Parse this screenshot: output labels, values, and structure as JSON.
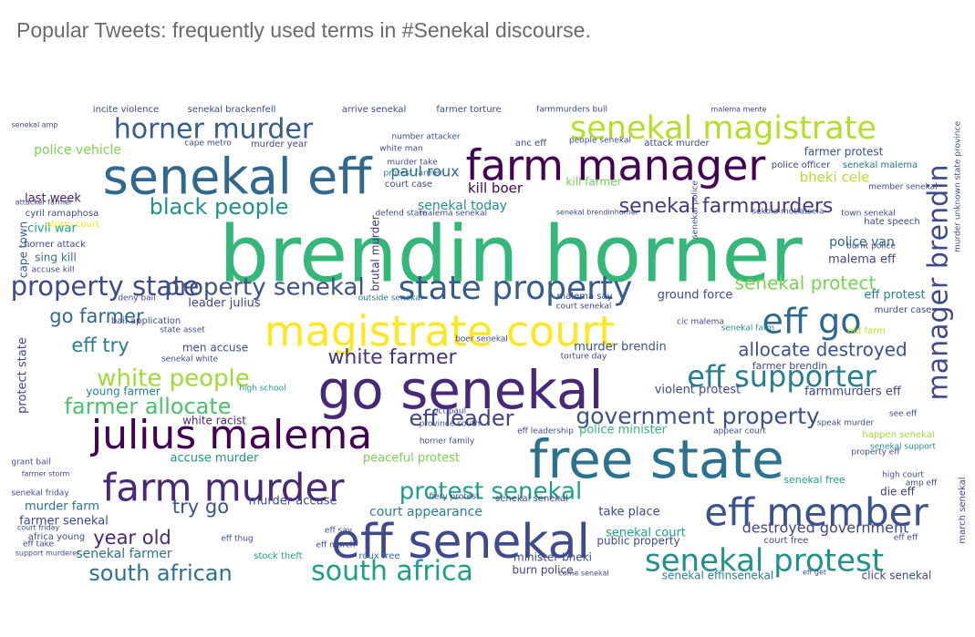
{
  "title": "Popular Tweets: frequently used terms in #Senekal discourse.",
  "chart_data": {
    "type": "wordcloud",
    "colormap": "viridis",
    "words": [
      {
        "text": "brendin horner",
        "weight": 100,
        "color": "#35b779"
      },
      {
        "text": "free state",
        "weight": 62,
        "color": "#2c728e"
      },
      {
        "text": "go senekal",
        "weight": 62,
        "color": "#482878"
      },
      {
        "text": "senekal eff",
        "weight": 60,
        "color": "#31688e"
      },
      {
        "text": "eff senekal",
        "weight": 56,
        "color": "#3e4a89"
      },
      {
        "text": "magistrate court",
        "weight": 52,
        "color": "#fde725"
      },
      {
        "text": "farm manager",
        "weight": 48,
        "color": "#440154"
      },
      {
        "text": "julius malema",
        "weight": 47,
        "color": "#440154"
      },
      {
        "text": "eff member",
        "weight": 45,
        "color": "#3b528b"
      },
      {
        "text": "farm murder",
        "weight": 45,
        "color": "#482878"
      },
      {
        "text": "eff go",
        "weight": 42,
        "color": "#31688e"
      },
      {
        "text": "property state",
        "weight": 37,
        "color": "#3e4a89"
      },
      {
        "text": "senekal magistrate",
        "weight": 36,
        "color": "#b5de2b"
      },
      {
        "text": "senekal protest",
        "weight": 36,
        "color": "#21918c"
      },
      {
        "text": "manager brendin",
        "weight": 34,
        "color": "#3e4a89"
      },
      {
        "text": "eff supporter",
        "weight": 34,
        "color": "#277f8e"
      },
      {
        "text": "south africa",
        "weight": 33,
        "color": "#1f9e89"
      },
      {
        "text": "horner murder",
        "weight": 32,
        "color": "#365c8d"
      },
      {
        "text": "property senekal",
        "weight": 30,
        "color": "#3b528b"
      },
      {
        "text": "white people",
        "weight": 28,
        "color": "#a0da39"
      },
      {
        "text": "government property",
        "weight": 26,
        "color": "#3b528b"
      },
      {
        "text": "protest senekal",
        "weight": 26,
        "color": "#1f9e89"
      },
      {
        "text": "black people",
        "weight": 25,
        "color": "#21918c"
      },
      {
        "text": "south african",
        "weight": 24,
        "color": "#2c728e"
      },
      {
        "text": "farmer allocate",
        "weight": 23,
        "color": "#4ac16d"
      },
      {
        "text": "eff leader",
        "weight": 23,
        "color": "#414487"
      },
      {
        "text": "white farmer",
        "weight": 22,
        "color": "#46337e"
      },
      {
        "text": "senekal farmmurders",
        "weight": 21,
        "color": "#443983"
      },
      {
        "text": "go farmer",
        "weight": 21,
        "color": "#31688e"
      },
      {
        "text": "senekal protect",
        "weight": 20,
        "color": "#7ad151"
      },
      {
        "text": "allocate destroyed",
        "weight": 20,
        "color": "#3b528b"
      },
      {
        "text": "eff try",
        "weight": 20,
        "color": "#287c8e"
      },
      {
        "text": "try go",
        "weight": 20,
        "color": "#3b528b"
      },
      {
        "text": "year old",
        "weight": 20,
        "color": "#482878"
      },
      {
        "text": "bheki cele",
        "weight": 14,
        "color": "#b5de2b"
      },
      {
        "text": "kill boer",
        "weight": 14,
        "color": "#440154"
      },
      {
        "text": "senekal today",
        "weight": 14,
        "color": "#21918c"
      },
      {
        "text": "paul roux",
        "weight": 14,
        "color": "#31688e"
      },
      {
        "text": "police van",
        "weight": 13,
        "color": "#31688e"
      },
      {
        "text": "malema eff",
        "weight": 13,
        "color": "#3e4a89"
      },
      {
        "text": "farmer protest",
        "weight": 12,
        "color": "#3b528b"
      },
      {
        "text": "police vehicle",
        "weight": 12,
        "color": "#7ad151"
      },
      {
        "text": "last week",
        "weight": 12,
        "color": "#481f70"
      },
      {
        "text": "civil war",
        "weight": 12,
        "color": "#1f9e89"
      },
      {
        "text": "leader julius",
        "weight": 12,
        "color": "#3e4a89"
      },
      {
        "text": "murder brendin",
        "weight": 12,
        "color": "#3b528b"
      },
      {
        "text": "accuse murder",
        "weight": 12,
        "color": "#21918c"
      },
      {
        "text": "peaceful protest",
        "weight": 12,
        "color": "#7ad151"
      },
      {
        "text": "court appearance",
        "weight": 13,
        "color": "#277f8e"
      },
      {
        "text": "destroyed government",
        "weight": 14,
        "color": "#3e4a89"
      },
      {
        "text": "senekal court",
        "weight": 12,
        "color": "#1f9e89"
      },
      {
        "text": "senekal farmer",
        "weight": 12,
        "color": "#2c728e"
      },
      {
        "text": "farmer senekal",
        "weight": 12,
        "color": "#3e4a89"
      },
      {
        "text": "murder farm",
        "weight": 12,
        "color": "#2c728e"
      },
      {
        "text": "young farmer",
        "weight": 11,
        "color": "#277f8e"
      },
      {
        "text": "violent protest",
        "weight": 12,
        "color": "#3e4a89"
      },
      {
        "text": "farmmurders eff",
        "weight": 12,
        "color": "#414487"
      },
      {
        "text": "eff protest",
        "weight": 12,
        "color": "#287c8e"
      },
      {
        "text": "ground force",
        "weight": 11,
        "color": "#3e4a89"
      },
      {
        "text": "police minister",
        "weight": 11,
        "color": "#35b779"
      },
      {
        "text": "white racist",
        "weight": 11,
        "color": "#482878"
      },
      {
        "text": "men accuse",
        "weight": 10,
        "color": "#3b528b"
      },
      {
        "text": "murder accuse",
        "weight": 11,
        "color": "#3e4a89"
      },
      {
        "text": "take place",
        "weight": 11,
        "color": "#3e4a89"
      },
      {
        "text": "public property",
        "weight": 10,
        "color": "#3e4a89"
      },
      {
        "text": "minister bheki",
        "weight": 10,
        "color": "#3e4a89"
      },
      {
        "text": "burn police",
        "weight": 10,
        "color": "#414487"
      },
      {
        "text": "click senekal",
        "weight": 10,
        "color": "#3e4a89"
      },
      {
        "text": "senekal effinsenekal",
        "weight": 10,
        "color": "#277f8e"
      },
      {
        "text": "sing kill",
        "weight": 10,
        "color": "#2c728e"
      },
      {
        "text": "protect state",
        "weight": 12,
        "color": "#3e4a89"
      },
      {
        "text": "cape town",
        "weight": 10,
        "color": "#365c8d"
      },
      {
        "text": "brutal murder",
        "weight": 10,
        "color": "#46337e"
      },
      {
        "text": "state property",
        "weight": 40,
        "color": "#365c8d"
      },
      {
        "text": "stock theft",
        "weight": 8,
        "color": "#1f9e89"
      },
      {
        "text": "roux free",
        "weight": 8,
        "color": "#2c728e"
      },
      {
        "text": "high school",
        "weight": 7,
        "color": "#1f9e89"
      },
      {
        "text": "africa young",
        "weight": 8,
        "color": "#3b528b"
      },
      {
        "text": "kill farmer",
        "weight": 10,
        "color": "#6ece58"
      },
      {
        "text": "die eff",
        "weight": 10,
        "color": "#443983"
      },
      {
        "text": "senekal free",
        "weight": 9,
        "color": "#1f9e89"
      },
      {
        "text": "court free",
        "weight": 8,
        "color": "#3e4a89"
      },
      {
        "text": "farmer brendin",
        "weight": 8,
        "color": "#3e4a89"
      },
      {
        "text": "happen senekal",
        "weight": 8,
        "color": "#a0da39"
      },
      {
        "text": "senekal support",
        "weight": 7,
        "color": "#21918c"
      },
      {
        "text": "cic malema",
        "weight": 7,
        "color": "#3e4a89"
      },
      {
        "text": "senekal farm",
        "weight": 7,
        "color": "#21918c"
      },
      {
        "text": "murder case",
        "weight": 7,
        "color": "#3e4a89"
      },
      {
        "text": "old farm",
        "weight": 7,
        "color": "#bddf26"
      },
      {
        "text": "hate speech",
        "weight": 7,
        "color": "#3e4a89"
      },
      {
        "text": "town senekal",
        "weight": 6,
        "color": "#3e4a89"
      },
      {
        "text": "burnt police",
        "weight": 6,
        "color": "#3e4a89"
      },
      {
        "text": "member senekal",
        "weight": 6,
        "color": "#3e4a89"
      },
      {
        "text": "police officer",
        "weight": 7,
        "color": "#3e4a89"
      },
      {
        "text": "senekal malema",
        "weight": 7,
        "color": "#2c728e"
      },
      {
        "text": "attack murder",
        "weight": 7,
        "color": "#3e4a89"
      },
      {
        "text": "people senekal",
        "weight": 6,
        "color": "#3e4a89"
      },
      {
        "text": "anc eff",
        "weight": 7,
        "color": "#3e4a89"
      },
      {
        "text": "murder year",
        "weight": 7,
        "color": "#3e4a89"
      },
      {
        "text": "cape metro",
        "weight": 6,
        "color": "#3e4a89"
      },
      {
        "text": "white man",
        "weight": 6,
        "color": "#3e4a89"
      },
      {
        "text": "number attacker",
        "weight": 6,
        "color": "#3e4a89"
      },
      {
        "text": "murder take",
        "weight": 6,
        "color": "#3e4a89"
      },
      {
        "text": "protest farmer",
        "weight": 6,
        "color": "#2c728e"
      },
      {
        "text": "court case",
        "weight": 7,
        "color": "#3e4a89"
      },
      {
        "text": "defend state",
        "weight": 6,
        "color": "#3e4a89"
      },
      {
        "text": "malema senekal",
        "weight": 6,
        "color": "#3e4a89"
      },
      {
        "text": "senekal brendinhorner",
        "weight": 5,
        "color": "#3e4a89"
      },
      {
        "text": "senekal police",
        "weight": 6,
        "color": "#3e4a89"
      },
      {
        "text": "sekola motlatsela",
        "weight": 6,
        "color": "#3e4a89"
      },
      {
        "text": "incite violence",
        "weight": 7,
        "color": "#3e4a89"
      },
      {
        "text": "senekal brackenfell",
        "weight": 7,
        "color": "#3e4a89"
      },
      {
        "text": "arrive senekal",
        "weight": 7,
        "color": "#3e4a89"
      },
      {
        "text": "farmer torture",
        "weight": 7,
        "color": "#3e4a89"
      },
      {
        "text": "farmmurders bull",
        "weight": 6,
        "color": "#3e4a89"
      },
      {
        "text": "malema mente",
        "weight": 5,
        "color": "#3e4a89"
      },
      {
        "text": "senekal amp",
        "weight": 5,
        "color": "#3e4a89"
      },
      {
        "text": "cyril ramaphosa",
        "weight": 6,
        "color": "#3e4a89"
      },
      {
        "text": "storm court",
        "weight": 6,
        "color": "#fde725"
      },
      {
        "text": "horner attack",
        "weight": 6,
        "color": "#3e4a89"
      },
      {
        "text": "accuse kill",
        "weight": 6,
        "color": "#3e4a89"
      },
      {
        "text": "deny bail",
        "weight": 6,
        "color": "#3e4a89"
      },
      {
        "text": "bail application",
        "weight": 7,
        "color": "#3e4a89"
      },
      {
        "text": "state asset",
        "weight": 6,
        "color": "#3e4a89"
      },
      {
        "text": "senekal white",
        "weight": 6,
        "color": "#3e4a89"
      },
      {
        "text": "outside senekal",
        "weight": 6,
        "color": "#2c728e"
      },
      {
        "text": "malema say",
        "weight": 6,
        "color": "#3e4a89"
      },
      {
        "text": "court senekal",
        "weight": 6,
        "color": "#3e4a89"
      },
      {
        "text": "boer senekal",
        "weight": 6,
        "color": "#3e4a89"
      },
      {
        "text": "torture day",
        "weight": 5,
        "color": "#3e4a89"
      },
      {
        "text": "oct paul",
        "weight": 6,
        "color": "#3e4a89"
      },
      {
        "text": "province south",
        "weight": 6,
        "color": "#3e4a89"
      },
      {
        "text": "eff leadership",
        "weight": 5,
        "color": "#3e4a89"
      },
      {
        "text": "horner family",
        "weight": 5,
        "color": "#3e4a89"
      },
      {
        "text": "appear court",
        "weight": 6,
        "color": "#3e4a89"
      },
      {
        "text": "speak murder",
        "weight": 5,
        "color": "#3e4a89"
      },
      {
        "text": "see eff",
        "weight": 5,
        "color": "#3e4a89"
      },
      {
        "text": "property eff",
        "weight": 5,
        "color": "#3e4a89"
      },
      {
        "text": "high court",
        "weight": 5,
        "color": "#3e4a89"
      },
      {
        "text": "amp eff",
        "weight": 5,
        "color": "#3e4a89"
      },
      {
        "text": "eff eff",
        "weight": 5,
        "color": "#3e4a89"
      },
      {
        "text": "fiery protest",
        "weight": 5,
        "color": "#3e4a89"
      },
      {
        "text": "senekal senekal",
        "weight": 6,
        "color": "#3e4a89"
      },
      {
        "text": "eff say",
        "weight": 6,
        "color": "#3e4a89"
      },
      {
        "text": "eff thug",
        "weight": 5,
        "color": "#3e4a89"
      },
      {
        "text": "eff march",
        "weight": 5,
        "color": "#3e4a89"
      },
      {
        "text": "eff take",
        "weight": 5,
        "color": "#3e4a89"
      },
      {
        "text": "support murderer",
        "weight": 5,
        "color": "#3e4a89"
      },
      {
        "text": "court friday",
        "weight": 5,
        "color": "#3e4a89"
      },
      {
        "text": "grant bail",
        "weight": 6,
        "color": "#3e4a89"
      },
      {
        "text": "farmer storm",
        "weight": 5,
        "color": "#3e4a89"
      },
      {
        "text": "attacker farmer",
        "weight": 5,
        "color": "#3e4a89"
      },
      {
        "text": "senekal friday",
        "weight": 5,
        "color": "#3e4a89"
      },
      {
        "text": "come senekal",
        "weight": 5,
        "color": "#3e4a89"
      },
      {
        "text": "eff get",
        "weight": 5,
        "color": "#3e4a89"
      },
      {
        "text": "march senekal",
        "weight": 7,
        "color": "#3e4a89"
      },
      {
        "text": "murder unknown state province",
        "weight": 6,
        "color": "#3e4a89"
      }
    ]
  }
}
